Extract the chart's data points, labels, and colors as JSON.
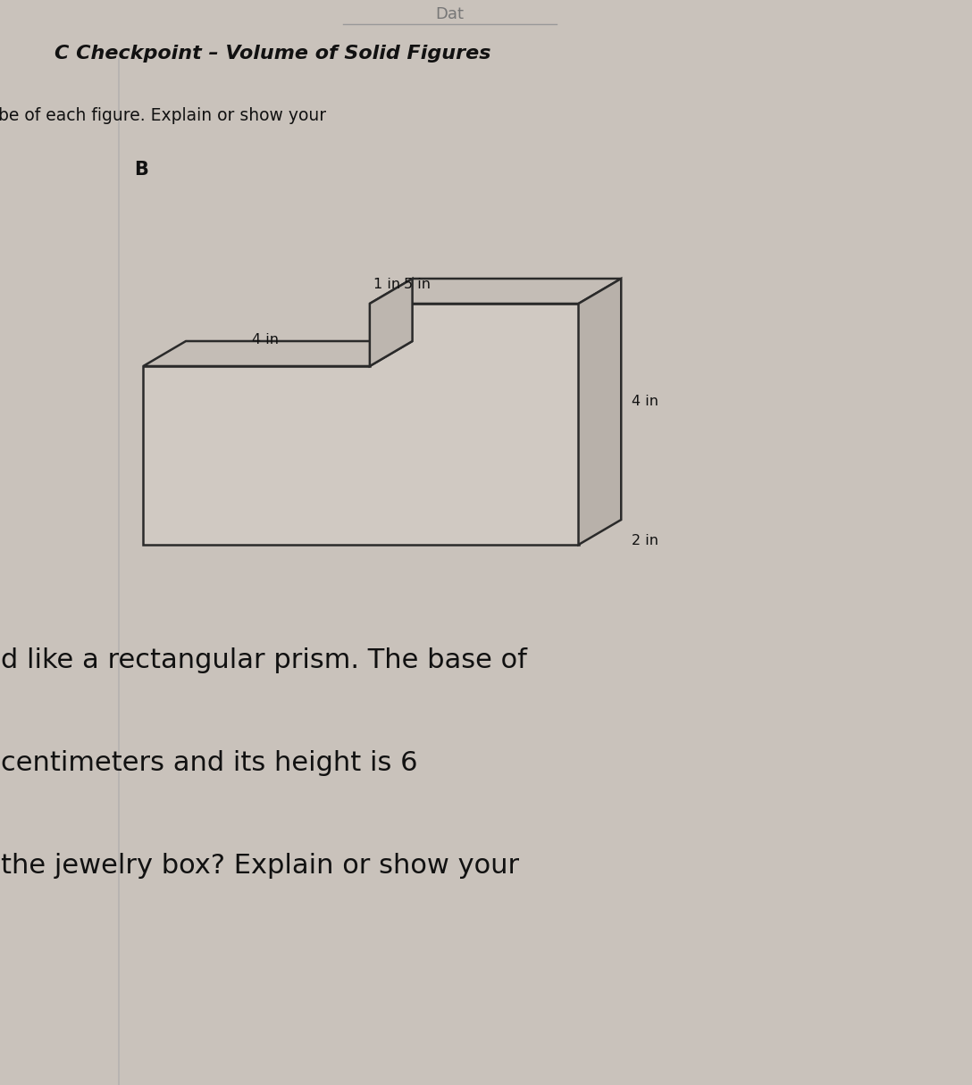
{
  "bg_color": "#c9c2bb",
  "title_bold": "C Checkpoint – Volume of Solid Figures",
  "partial_text1": "C Checkpoint – Volume of Solid Figures",
  "partial_text2": "be of each figure. Explain or show your",
  "label_B": "B",
  "dim_top": "4 in",
  "dim_notch_left": "1 in",
  "dim_notch_right": "5 in",
  "dim_height": "4 in",
  "dim_depth": "2 in",
  "bottom_line1": "d like a rectangular prism. The base of",
  "bottom_line2": "centimeters and its height is 6",
  "bottom_line3": "the jewelry box? Explain or show your",
  "line_color": "#2a2a2a",
  "text_color": "#111111",
  "face_front": "#d0c9c2",
  "face_top": "#c4bdb6",
  "face_right": "#b8b1aa",
  "face_step_side": "#bdb6af"
}
